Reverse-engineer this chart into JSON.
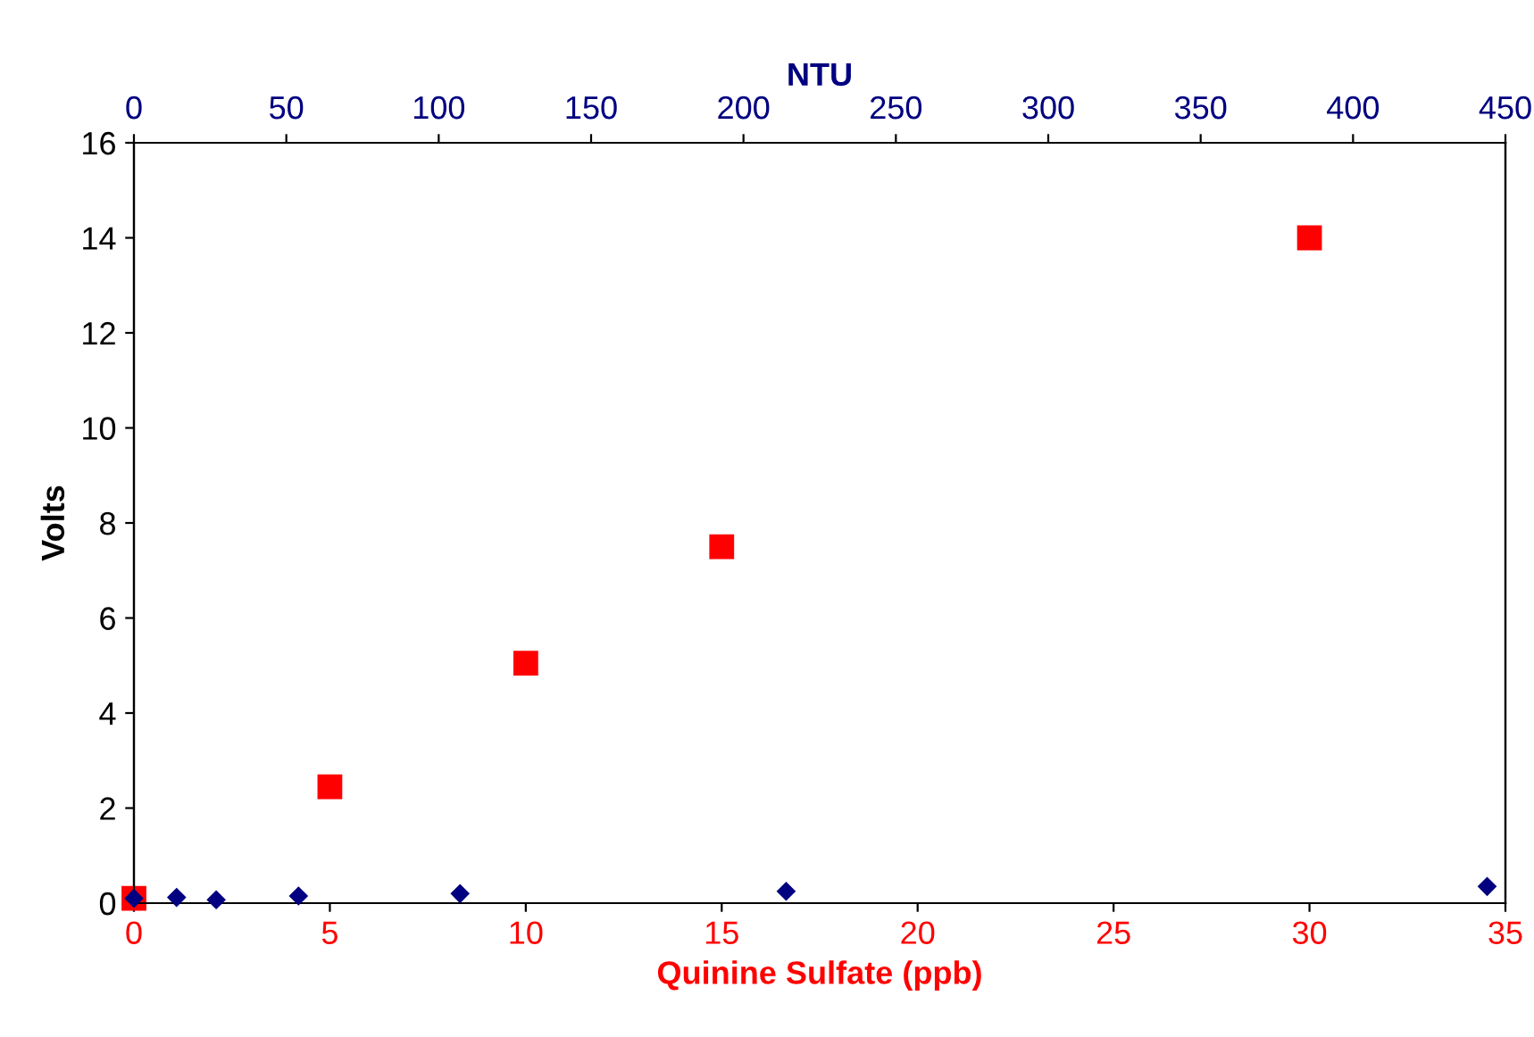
{
  "chart_data": {
    "type": "scatter",
    "xlabel": "Quinine Sulfate (ppb)",
    "x2label": "NTU",
    "ylabel": "Volts",
    "xlim": [
      0,
      35
    ],
    "xticks": [
      0,
      5,
      10,
      15,
      20,
      25,
      30,
      35
    ],
    "x2lim": [
      0,
      450
    ],
    "x2ticks": [
      0,
      50,
      100,
      150,
      200,
      250,
      300,
      350,
      400,
      450
    ],
    "ylim": [
      0,
      16
    ],
    "yticks": [
      0,
      2,
      4,
      6,
      8,
      10,
      12,
      14,
      16
    ],
    "grid": false,
    "legend": false,
    "series": [
      {
        "color": "#ff0000",
        "marker": "square",
        "x": [
          0,
          5,
          10,
          15,
          30
        ],
        "values": [
          0.1,
          2.45,
          5.05,
          7.5,
          14.0
        ]
      },
      {
        "color": "#000080",
        "marker": "diamond",
        "axis": "x2",
        "x": [
          0,
          14,
          27,
          54,
          107,
          214,
          444
        ],
        "values": [
          0.1,
          0.12,
          0.07,
          0.15,
          0.2,
          0.25,
          0.35
        ]
      }
    ]
  }
}
